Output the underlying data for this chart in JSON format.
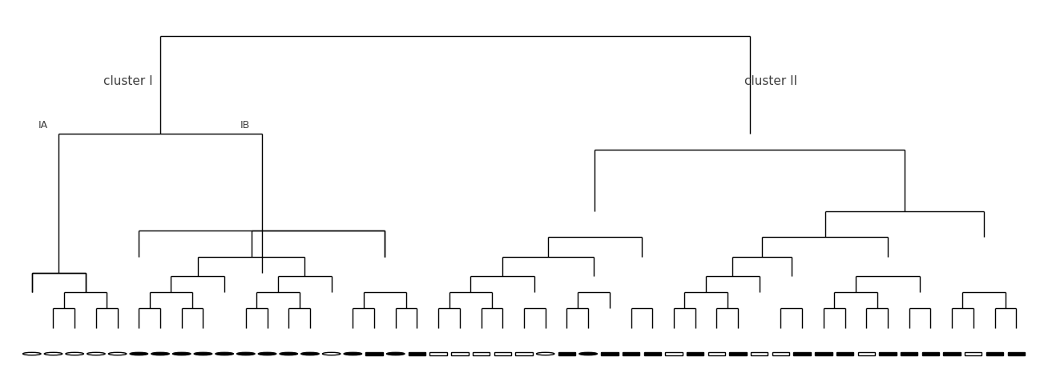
{
  "title": "",
  "bg_color": "#ffffff",
  "line_color": "#000000",
  "label_color": "#404040",
  "cluster_I_label": "cluster I",
  "cluster_II_label": "cluster II",
  "subcluster_IA_label": "IA",
  "subcluster_IB_label": "IB",
  "symbols": [
    "open_circle",
    "open_circle",
    "open_circle",
    "open_circle",
    "open_circle",
    "filled_circle",
    "filled_circle",
    "filled_circle",
    "filled_circle",
    "filled_circle",
    "filled_circle",
    "filled_circle",
    "filled_circle",
    "filled_circle",
    "open_circle",
    "filled_circle",
    "filled_square",
    "filled_circle",
    "filled_square",
    "open_square",
    "open_square",
    "open_square",
    "open_square",
    "open_square",
    "open_circle",
    "filled_square",
    "filled_circle",
    "filled_square",
    "filled_square",
    "filled_square",
    "open_square",
    "filled_square",
    "open_square",
    "filled_square",
    "open_square",
    "open_square",
    "filled_square",
    "filled_square",
    "filled_square",
    "open_square",
    "filled_square",
    "filled_square",
    "filled_square",
    "filled_square",
    "open_square",
    "filled_square",
    "filled_square"
  ],
  "n_leaves": 47,
  "figsize": [
    13.08,
    4.71
  ],
  "dpi": 100,
  "font_size_cluster": 11,
  "font_size_sub": 9
}
